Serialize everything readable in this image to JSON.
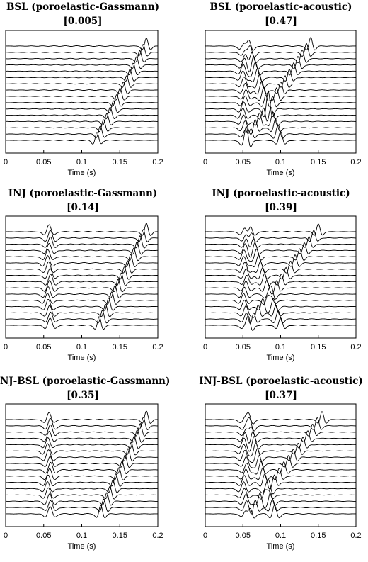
{
  "chart_data": [
    {
      "type": "line",
      "title": "BSL (poroelastic-Gassmann)",
      "subtitle": "[0.005]",
      "xlabel": "Time (s)",
      "xlim": [
        0,
        0.2
      ],
      "xticks": [
        "0",
        "0.05",
        "0.1",
        "0.15",
        "0.2"
      ],
      "grid": false,
      "trace_count": 16,
      "events": [
        {
          "kind": "dipping",
          "t_start": 0.12,
          "t_end": 0.185,
          "amplitude": 1.4
        }
      ]
    },
    {
      "type": "line",
      "title": "BSL (poroelastic-acoustic)",
      "subtitle": "[0.47]",
      "xlabel": "Time (s)",
      "xlim": [
        0,
        0.2
      ],
      "xticks": [
        "0",
        "0.05",
        "0.1",
        "0.15",
        "0.2"
      ],
      "grid": false,
      "trace_count": 16,
      "events": [
        {
          "kind": "direct",
          "t_start": 0.052,
          "t_end": 0.052,
          "amplitude": 1.2
        },
        {
          "kind": "dipping",
          "t_start": 0.055,
          "t_end": 0.14,
          "amplitude": 1.5
        },
        {
          "kind": "reflected",
          "t_start": 0.058,
          "t_end": 0.1,
          "amplitude": 1.6
        }
      ]
    },
    {
      "type": "line",
      "title": "INJ (poroelastic-Gassmann)",
      "subtitle": "[0.14]",
      "xlabel": "Time (s)",
      "xlim": [
        0,
        0.2
      ],
      "xticks": [
        "0",
        "0.05",
        "0.1",
        "0.15",
        "0.2"
      ],
      "grid": false,
      "trace_count": 16,
      "events": [
        {
          "kind": "direct",
          "t_start": 0.057,
          "t_end": 0.057,
          "amplitude": 1.3
        },
        {
          "kind": "dipping",
          "t_start": 0.123,
          "t_end": 0.185,
          "amplitude": 1.5
        }
      ]
    },
    {
      "type": "line",
      "title": "INJ (poroelastic-acoustic)",
      "subtitle": "[0.39]",
      "xlabel": "Time (s)",
      "xlim": [
        0,
        0.2
      ],
      "xticks": [
        "0",
        "0.05",
        "0.1",
        "0.15",
        "0.2"
      ],
      "grid": false,
      "trace_count": 16,
      "events": [
        {
          "kind": "direct",
          "t_start": 0.053,
          "t_end": 0.053,
          "amplitude": 1.2
        },
        {
          "kind": "dipping",
          "t_start": 0.058,
          "t_end": 0.15,
          "amplitude": 1.4
        },
        {
          "kind": "reflected",
          "t_start": 0.06,
          "t_end": 0.1,
          "amplitude": 1.4
        }
      ]
    },
    {
      "type": "line",
      "title": "INJ-BSL (poroelastic-Gassmann)",
      "subtitle": "[0.35]",
      "xlabel": "Time (s)",
      "xlim": [
        0,
        0.2
      ],
      "xticks": [
        "0",
        "0.05",
        "0.1",
        "0.15",
        "0.2"
      ],
      "grid": false,
      "trace_count": 16,
      "events": [
        {
          "kind": "direct",
          "t_start": 0.057,
          "t_end": 0.057,
          "amplitude": 1.3
        },
        {
          "kind": "dipping",
          "t_start": 0.125,
          "t_end": 0.185,
          "amplitude": 1.5
        }
      ]
    },
    {
      "type": "line",
      "title": "INJ-BSL (poroelastic-acoustic)",
      "subtitle": "[0.37]",
      "xlabel": "Time (s)",
      "xlim": [
        0,
        0.2
      ],
      "xticks": [
        "0",
        "0.05",
        "0.1",
        "0.15",
        "0.2"
      ],
      "grid": false,
      "trace_count": 16,
      "events": [
        {
          "kind": "direct",
          "t_start": 0.053,
          "t_end": 0.053,
          "amplitude": 1.2
        },
        {
          "kind": "dipping",
          "t_start": 0.06,
          "t_end": 0.155,
          "amplitude": 1.4
        },
        {
          "kind": "reflected",
          "t_start": 0.058,
          "t_end": 0.092,
          "amplitude": 1.5
        }
      ]
    }
  ]
}
